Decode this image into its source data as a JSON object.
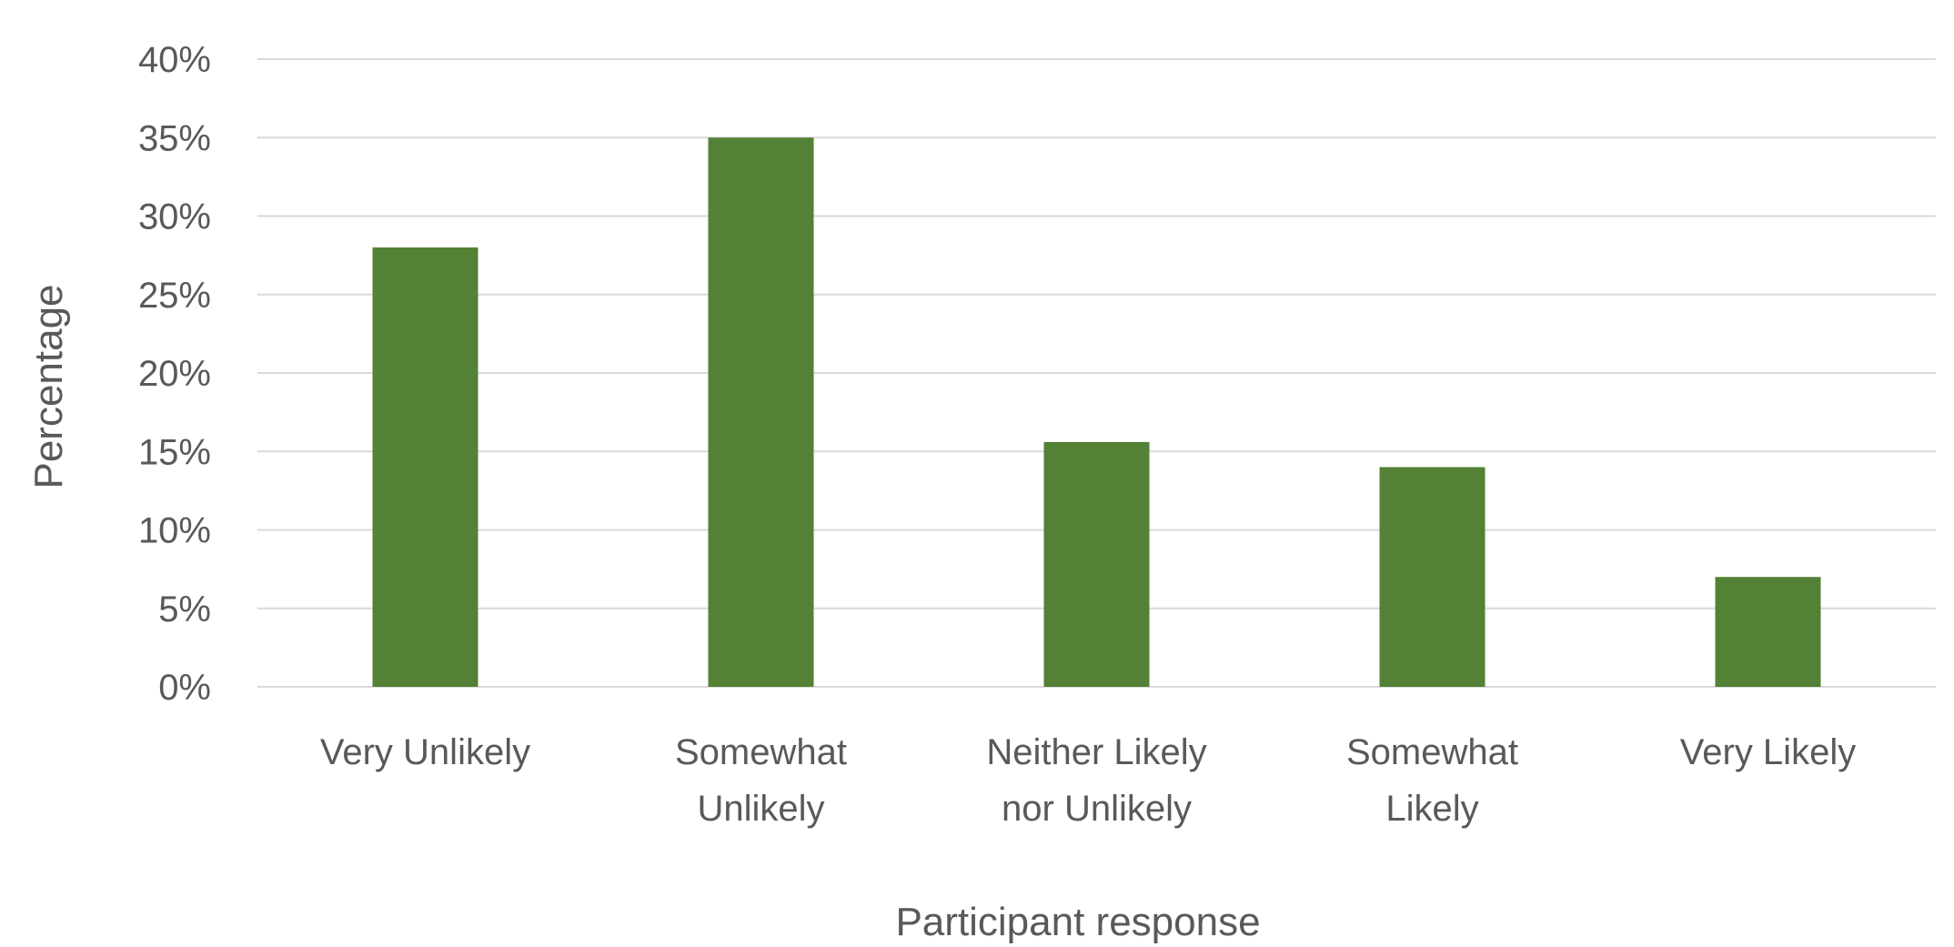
{
  "chart_data": {
    "type": "bar",
    "categories": [
      [
        "Very Unlikely"
      ],
      [
        "Somewhat",
        "Unlikely"
      ],
      [
        "Neither Likely",
        "nor Unlikely"
      ],
      [
        "Somewhat",
        "Likely"
      ],
      [
        "Very Likely"
      ]
    ],
    "values": [
      28,
      35,
      15.6,
      14,
      7
    ],
    "unit": "%",
    "ylim": [
      0,
      40
    ],
    "yticks": [
      "0%",
      "5%",
      "10%",
      "15%",
      "20%",
      "25%",
      "30%",
      "35%",
      "40%"
    ],
    "xlabel": "Participant response",
    "ylabel": "Percentage",
    "grid": true,
    "bar_color": "#538135"
  }
}
